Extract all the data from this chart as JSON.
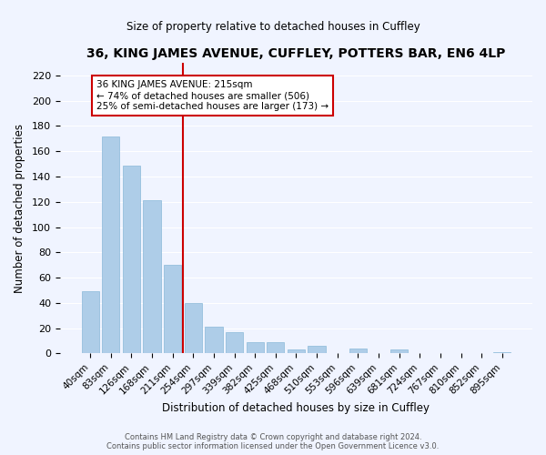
{
  "title": "36, KING JAMES AVENUE, CUFFLEY, POTTERS BAR, EN6 4LP",
  "subtitle": "Size of property relative to detached houses in Cuffley",
  "xlabel": "Distribution of detached houses by size in Cuffley",
  "ylabel": "Number of detached properties",
  "bar_color": "#aecde8",
  "bar_edge_color": "#8ab8d8",
  "categories": [
    "40sqm",
    "83sqm",
    "126sqm",
    "168sqm",
    "211sqm",
    "254sqm",
    "297sqm",
    "339sqm",
    "382sqm",
    "425sqm",
    "468sqm",
    "510sqm",
    "553sqm",
    "596sqm",
    "639sqm",
    "681sqm",
    "724sqm",
    "767sqm",
    "810sqm",
    "852sqm",
    "895sqm"
  ],
  "values": [
    49,
    172,
    149,
    121,
    70,
    40,
    21,
    17,
    9,
    9,
    3,
    6,
    0,
    4,
    0,
    3,
    0,
    0,
    0,
    0,
    1
  ],
  "ylim": [
    0,
    230
  ],
  "yticks": [
    0,
    20,
    40,
    60,
    80,
    100,
    120,
    140,
    160,
    180,
    200,
    220
  ],
  "vline_pos": 4.5,
  "vline_color": "#cc0000",
  "annotation_title": "36 KING JAMES AVENUE: 215sqm",
  "annotation_line1": "← 74% of detached houses are smaller (506)",
  "annotation_line2": "25% of semi-detached houses are larger (173) →",
  "annotation_box_color": "#ffffff",
  "annotation_box_edge": "#cc0000",
  "footer1": "Contains HM Land Registry data © Crown copyright and database right 2024.",
  "footer2": "Contains public sector information licensed under the Open Government Licence v3.0.",
  "bg_color": "#f0f4ff",
  "grid_color": "#ffffff"
}
